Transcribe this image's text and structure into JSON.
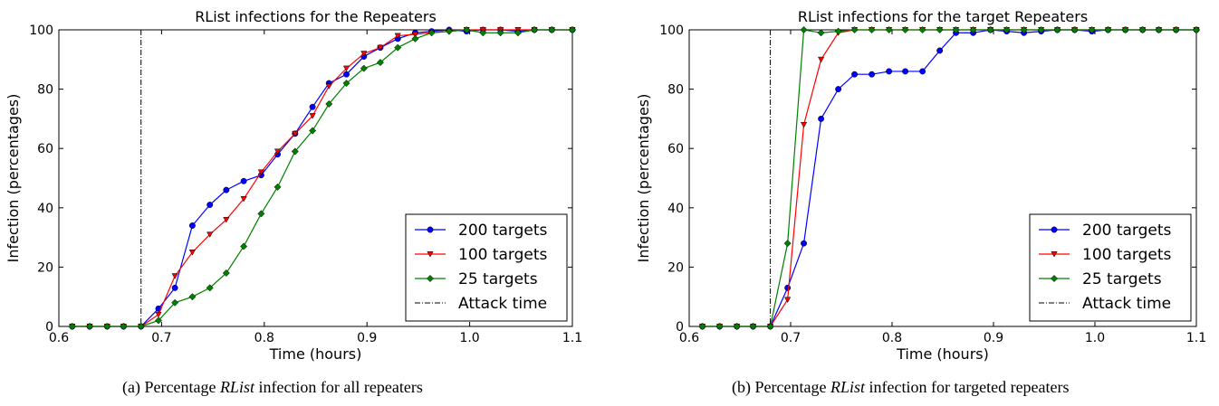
{
  "captions": [
    {
      "prefix": "(a) Percentage ",
      "emph": "RList",
      "suffix": " infection for all repeaters"
    },
    {
      "prefix": "(b) Percentage ",
      "emph": "RList",
      "suffix": " infection for targeted repeaters"
    }
  ],
  "chart_data": [
    {
      "type": "line",
      "title": "RList infections for the Repeaters",
      "xlabel": "Time (hours)",
      "ylabel": "Infection (percentages)",
      "xlim": [
        0.6,
        1.1
      ],
      "ylim": [
        0,
        100
      ],
      "xticks": [
        "0.6",
        "0.7",
        "0.8",
        "0.9",
        "1.0",
        "1.1"
      ],
      "yticks": [
        "0",
        "20",
        "40",
        "60",
        "80",
        "100"
      ],
      "legend_position": "lower-right",
      "grid": false,
      "vline": {
        "name": "Attack time",
        "x": 0.68,
        "color": "#000000"
      },
      "series": [
        {
          "name": "200 targets",
          "color": "#0000ff",
          "marker": "circle",
          "x": [
            0.613,
            0.63,
            0.647,
            0.663,
            0.68,
            0.697,
            0.713,
            0.73,
            0.747,
            0.763,
            0.78,
            0.797,
            0.813,
            0.83,
            0.847,
            0.863,
            0.88,
            0.897,
            0.913,
            0.93,
            0.947,
            0.963,
            0.98,
            0.997,
            1.013,
            1.03,
            1.047,
            1.063,
            1.08,
            1.1
          ],
          "y": [
            0,
            0,
            0,
            0,
            0,
            6,
            13,
            34,
            41,
            46,
            49,
            51,
            58,
            65,
            74,
            82,
            85,
            91,
            94,
            97,
            99,
            99.5,
            100,
            99.5,
            100,
            100,
            99.5,
            100,
            100,
            100
          ]
        },
        {
          "name": "100 targets",
          "color": "#ff0000",
          "marker": "triangle-down",
          "x": [
            0.613,
            0.63,
            0.647,
            0.663,
            0.68,
            0.697,
            0.713,
            0.73,
            0.747,
            0.763,
            0.78,
            0.797,
            0.813,
            0.83,
            0.847,
            0.863,
            0.88,
            0.897,
            0.913,
            0.93,
            0.947,
            0.963,
            0.98,
            0.997,
            1.013,
            1.03,
            1.047,
            1.063,
            1.08,
            1.1
          ],
          "y": [
            0,
            0,
            0,
            0,
            0,
            4,
            17,
            25,
            31,
            36,
            43,
            52,
            59,
            65,
            71,
            81,
            87,
            92,
            94,
            98,
            98.5,
            99,
            99.5,
            100,
            100,
            100,
            100,
            100,
            100,
            100
          ]
        },
        {
          "name": "25 targets",
          "color": "#008000",
          "marker": "diamond",
          "x": [
            0.613,
            0.63,
            0.647,
            0.663,
            0.68,
            0.697,
            0.713,
            0.73,
            0.747,
            0.763,
            0.78,
            0.797,
            0.813,
            0.83,
            0.847,
            0.863,
            0.88,
            0.897,
            0.913,
            0.93,
            0.947,
            0.963,
            0.98,
            0.997,
            1.013,
            1.03,
            1.047,
            1.063,
            1.08,
            1.1
          ],
          "y": [
            0,
            0,
            0,
            0,
            0,
            2,
            8,
            10,
            13,
            18,
            27,
            38,
            47,
            59,
            66,
            75,
            82,
            87,
            89,
            94,
            97,
            99,
            99.5,
            100,
            99,
            99,
            99,
            100,
            100,
            100
          ]
        }
      ]
    },
    {
      "type": "line",
      "title": "RList infections for the target Repeaters",
      "xlabel": "Time (hours)",
      "ylabel": "Infection (percentages)",
      "xlim": [
        0.6,
        1.1
      ],
      "ylim": [
        0,
        100
      ],
      "xticks": [
        "0.6",
        "0.7",
        "0.8",
        "0.9",
        "1.0",
        "1.1"
      ],
      "yticks": [
        "0",
        "20",
        "40",
        "60",
        "80",
        "100"
      ],
      "legend_position": "lower-right",
      "grid": false,
      "vline": {
        "name": "Attack time",
        "x": 0.68,
        "color": "#000000"
      },
      "series": [
        {
          "name": "200 targets",
          "color": "#0000ff",
          "marker": "circle",
          "x": [
            0.613,
            0.63,
            0.647,
            0.663,
            0.68,
            0.697,
            0.713,
            0.73,
            0.747,
            0.763,
            0.78,
            0.797,
            0.813,
            0.83,
            0.847,
            0.863,
            0.88,
            0.897,
            0.913,
            0.93,
            0.947,
            0.963,
            0.98,
            0.997,
            1.013,
            1.03,
            1.047,
            1.063,
            1.08,
            1.1
          ],
          "y": [
            0,
            0,
            0,
            0,
            0,
            13,
            28,
            70,
            80,
            85,
            85,
            86,
            86,
            86,
            93,
            99,
            99,
            100,
            99.5,
            99,
            99.5,
            100,
            100,
            99.5,
            100,
            100,
            100,
            100,
            100,
            100
          ]
        },
        {
          "name": "100 targets",
          "color": "#ff0000",
          "marker": "triangle-down",
          "x": [
            0.613,
            0.63,
            0.647,
            0.663,
            0.68,
            0.697,
            0.713,
            0.73,
            0.747,
            0.763,
            0.78,
            0.797,
            0.813,
            0.83,
            0.847,
            0.863,
            0.88,
            0.897,
            0.913,
            0.93,
            0.947,
            0.963,
            0.98,
            0.997,
            1.013,
            1.03,
            1.047,
            1.063,
            1.08,
            1.1
          ],
          "y": [
            0,
            0,
            0,
            0,
            0,
            9,
            68,
            90,
            99,
            100,
            100,
            100,
            100,
            100,
            100,
            100,
            100,
            100,
            100,
            100,
            100,
            100,
            100,
            100,
            100,
            100,
            100,
            100,
            100,
            100
          ]
        },
        {
          "name": "25 targets",
          "color": "#008000",
          "marker": "diamond",
          "x": [
            0.613,
            0.63,
            0.647,
            0.663,
            0.68,
            0.697,
            0.713,
            0.73,
            0.747,
            0.763,
            0.78,
            0.797,
            0.813,
            0.83,
            0.847,
            0.863,
            0.88,
            0.897,
            0.913,
            0.93,
            0.947,
            0.963,
            0.98,
            0.997,
            1.013,
            1.03,
            1.047,
            1.063,
            1.08,
            1.1
          ],
          "y": [
            0,
            0,
            0,
            0,
            0,
            28,
            100,
            99,
            99.5,
            100,
            100,
            100,
            100,
            100,
            100,
            100,
            100,
            100,
            100,
            100,
            100,
            100,
            100,
            100,
            100,
            100,
            100,
            100,
            100,
            100
          ]
        }
      ]
    }
  ]
}
